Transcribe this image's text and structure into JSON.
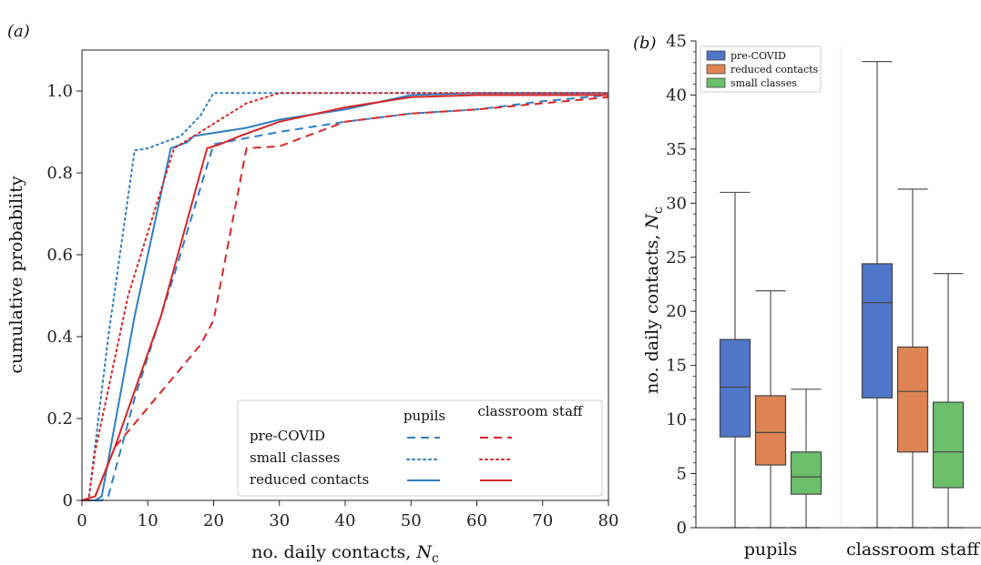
{
  "chart_data": [
    {
      "panel_label": "(a)",
      "type": "line",
      "xlabel": "no. daily contacts, ",
      "xlabel_var": "N",
      "xlabel_sub": "c",
      "ylabel": "cumulative probability",
      "xlim": [
        0,
        80
      ],
      "ylim": [
        0,
        1.1
      ],
      "x_ticks": [
        0,
        10,
        20,
        30,
        40,
        50,
        60,
        70,
        80
      ],
      "y_ticks": [
        0,
        0.2,
        0.4,
        0.6,
        0.8,
        1.0
      ],
      "y_tick_labels": [
        "0",
        "0.2",
        "0.4",
        "0.6",
        "0.8",
        "1.0"
      ],
      "grid": false,
      "legend": {
        "placement": "bottom-right",
        "col_headers": [
          "pupils",
          "classroom staff"
        ],
        "rows": [
          "pre-COVID",
          "small classes",
          "reduced contacts"
        ]
      },
      "colors": {
        "pupils": "#2f7fc1",
        "classroom staff": "#d62728"
      },
      "series": [
        {
          "group": "pupils",
          "scenario": "pre-COVID",
          "style": "dashed",
          "points": [
            [
              0,
              0
            ],
            [
              3,
              0
            ],
            [
              4,
              0.01
            ],
            [
              8,
              0.25
            ],
            [
              14,
              0.55
            ],
            [
              20,
              0.87
            ],
            [
              30,
              0.9
            ],
            [
              40,
              0.925
            ],
            [
              50,
              0.945
            ],
            [
              60,
              0.955
            ],
            [
              70,
              0.975
            ],
            [
              80,
              0.99
            ]
          ]
        },
        {
          "group": "pupils",
          "scenario": "small classes",
          "style": "dotted",
          "points": [
            [
              0,
              0
            ],
            [
              1,
              0
            ],
            [
              4,
              0.4
            ],
            [
              8,
              0.855
            ],
            [
              10,
              0.86
            ],
            [
              15,
              0.89
            ],
            [
              18,
              0.94
            ],
            [
              20,
              0.995
            ],
            [
              30,
              0.995
            ],
            [
              80,
              0.995
            ]
          ]
        },
        {
          "group": "pupils",
          "scenario": "reduced contacts",
          "style": "solid",
          "points": [
            [
              0,
              0
            ],
            [
              2,
              0
            ],
            [
              3,
              0.01
            ],
            [
              8,
              0.45
            ],
            [
              13.5,
              0.86
            ],
            [
              16,
              0.875
            ],
            [
              17,
              0.89
            ],
            [
              25,
              0.91
            ],
            [
              30,
              0.93
            ],
            [
              40,
              0.955
            ],
            [
              50,
              0.99
            ],
            [
              60,
              0.995
            ],
            [
              80,
              0.995
            ]
          ]
        },
        {
          "group": "classroom staff",
          "scenario": "pre-COVID",
          "style": "dashed",
          "points": [
            [
              0,
              0
            ],
            [
              2,
              0.01
            ],
            [
              5,
              0.13
            ],
            [
              18,
              0.38
            ],
            [
              20,
              0.44
            ],
            [
              25,
              0.86
            ],
            [
              27,
              0.862
            ],
            [
              30,
              0.865
            ],
            [
              40,
              0.925
            ],
            [
              50,
              0.945
            ],
            [
              60,
              0.955
            ],
            [
              70,
              0.97
            ],
            [
              80,
              0.985
            ]
          ]
        },
        {
          "group": "classroom staff",
          "scenario": "small classes",
          "style": "dotted",
          "points": [
            [
              0,
              0
            ],
            [
              1,
              0
            ],
            [
              2,
              0.12
            ],
            [
              7,
              0.5
            ],
            [
              14,
              0.86
            ],
            [
              20,
              0.92
            ],
            [
              25,
              0.97
            ],
            [
              30,
              0.995
            ],
            [
              80,
              0.995
            ]
          ]
        },
        {
          "group": "classroom staff",
          "scenario": "reduced contacts",
          "style": "solid",
          "points": [
            [
              0,
              0
            ],
            [
              2,
              0.01
            ],
            [
              5,
              0.13
            ],
            [
              12,
              0.45
            ],
            [
              19,
              0.86
            ],
            [
              21,
              0.87
            ],
            [
              24,
              0.89
            ],
            [
              30,
              0.925
            ],
            [
              40,
              0.96
            ],
            [
              50,
              0.985
            ],
            [
              60,
              0.99
            ],
            [
              80,
              0.99
            ]
          ]
        }
      ]
    },
    {
      "panel_label": "(b)",
      "type": "box",
      "ylabel": "no. daily contacts, ",
      "ylabel_var": "N",
      "ylabel_sub": "c",
      "ylim": [
        0,
        45
      ],
      "y_ticks": [
        0,
        5,
        10,
        15,
        20,
        25,
        30,
        35,
        40,
        45
      ],
      "categories": [
        "pupils",
        "classroom staff"
      ],
      "grid": false,
      "legend": {
        "placement": "top-left",
        "entries": [
          "pre-COVID",
          "reduced contacts",
          "small classes"
        ]
      },
      "series": [
        {
          "name": "pre-COVID",
          "color": "#4f76c8",
          "boxes": [
            {
              "whisker_low": 0,
              "q1": 8.4,
              "median": 13.0,
              "q3": 17.4,
              "whisker_high": 31.0
            },
            {
              "whisker_low": 0,
              "q1": 12.0,
              "median": 20.8,
              "q3": 24.4,
              "whisker_high": 43.1
            }
          ]
        },
        {
          "name": "reduced contacts",
          "color": "#dd8452",
          "boxes": [
            {
              "whisker_low": 0,
              "q1": 5.8,
              "median": 8.8,
              "q3": 12.2,
              "whisker_high": 21.9
            },
            {
              "whisker_low": 0,
              "q1": 7.0,
              "median": 12.6,
              "q3": 16.7,
              "whisker_high": 31.3
            }
          ]
        },
        {
          "name": "small classes",
          "color": "#6cc06c",
          "boxes": [
            {
              "whisker_low": 0,
              "q1": 3.1,
              "median": 4.7,
              "q3": 7.0,
              "whisker_high": 12.8
            },
            {
              "whisker_low": 0,
              "q1": 3.7,
              "median": 7.0,
              "q3": 11.6,
              "whisker_high": 23.5
            }
          ]
        }
      ]
    }
  ]
}
